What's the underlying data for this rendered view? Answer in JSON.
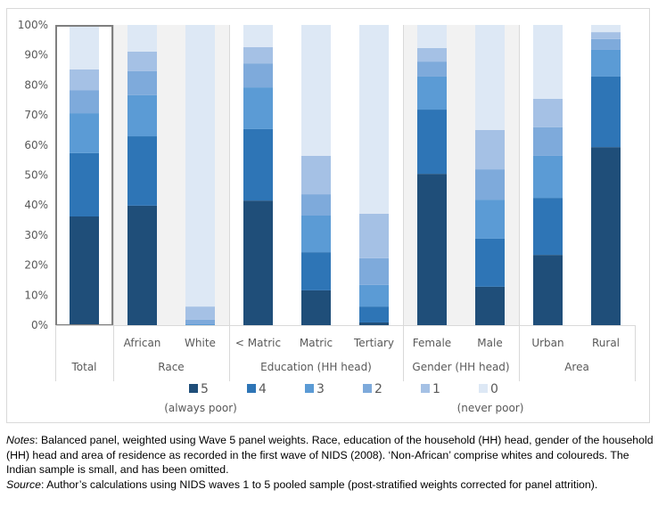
{
  "chart_data": {
    "type": "bar",
    "stacked": true,
    "percent_stacked": true,
    "title": "",
    "xlabel": "",
    "ylabel": "",
    "ylim": [
      0,
      100
    ],
    "yticks": [
      "0%",
      "10%",
      "20%",
      "30%",
      "40%",
      "50%",
      "60%",
      "70%",
      "80%",
      "90%",
      "100%"
    ],
    "grid": false,
    "legend_position": "bottom",
    "categories": [
      "",
      "African",
      "White",
      "< Matric",
      "Matric",
      "Tertiary",
      "Female",
      "Male",
      "Urban",
      "Rural"
    ],
    "groups": [
      {
        "label": "Total",
        "categories": [
          ""
        ],
        "highlighted": true,
        "shaded": false
      },
      {
        "label": "Race",
        "categories": [
          "African",
          "White"
        ],
        "highlighted": false,
        "shaded": true
      },
      {
        "label": "Education (HH head)",
        "categories": [
          "< Matric",
          "Matric",
          "Tertiary"
        ],
        "highlighted": false,
        "shaded": false
      },
      {
        "label": "Gender (HH head)",
        "categories": [
          "Female",
          "Male"
        ],
        "highlighted": false,
        "shaded": true
      },
      {
        "label": "Area",
        "categories": [
          "Urban",
          "Rural"
        ],
        "highlighted": false,
        "shaded": false
      }
    ],
    "series": [
      {
        "name": "5",
        "sublabel": "(always poor)",
        "color": "#1f4e79",
        "values": [
          36.2,
          39.8,
          0.0,
          41.5,
          11.6,
          0.9,
          50.4,
          12.8,
          23.4,
          59.3
        ]
      },
      {
        "name": "4",
        "sublabel": "",
        "color": "#2e75b6",
        "values": [
          21.1,
          23.1,
          0.0,
          23.8,
          12.7,
          5.3,
          21.4,
          16.0,
          19.0,
          23.5
        ]
      },
      {
        "name": "3",
        "sublabel": "",
        "color": "#5b9bd5",
        "values": [
          13.3,
          13.7,
          0.3,
          13.9,
          12.2,
          7.2,
          11.0,
          13.0,
          14.0,
          8.9
        ]
      },
      {
        "name": "2",
        "sublabel": "",
        "color": "#7eaadb",
        "values": [
          7.7,
          8.0,
          1.5,
          8.0,
          7.1,
          8.9,
          5.0,
          10.1,
          9.5,
          3.6
        ]
      },
      {
        "name": "1",
        "sublabel": "",
        "color": "#a5c1e5",
        "values": [
          6.9,
          6.5,
          4.4,
          5.4,
          12.8,
          14.8,
          4.5,
          13.1,
          9.5,
          2.3
        ]
      },
      {
        "name": "0",
        "sublabel": "(never poor)",
        "color": "#dde8f5",
        "values": [
          14.8,
          8.9,
          93.8,
          7.4,
          43.6,
          62.9,
          7.7,
          35.0,
          24.6,
          2.4
        ]
      }
    ]
  },
  "notes": {
    "notes_label": "Notes",
    "notes_text": ": Balanced panel, weighted using Wave 5 panel weights. Race, education of the household (HH) head, gender of the household (HH) head and area of residence as recorded in the first wave of NIDS (2008). ‘Non-African’ comprise whites and coloureds. The Indian sample is small, and has been omitted.",
    "source_label": "Source",
    "source_text": ": Author’s calculations using NIDS waves 1 to 5 pooled sample (post-stratified weights corrected for panel attrition)."
  }
}
